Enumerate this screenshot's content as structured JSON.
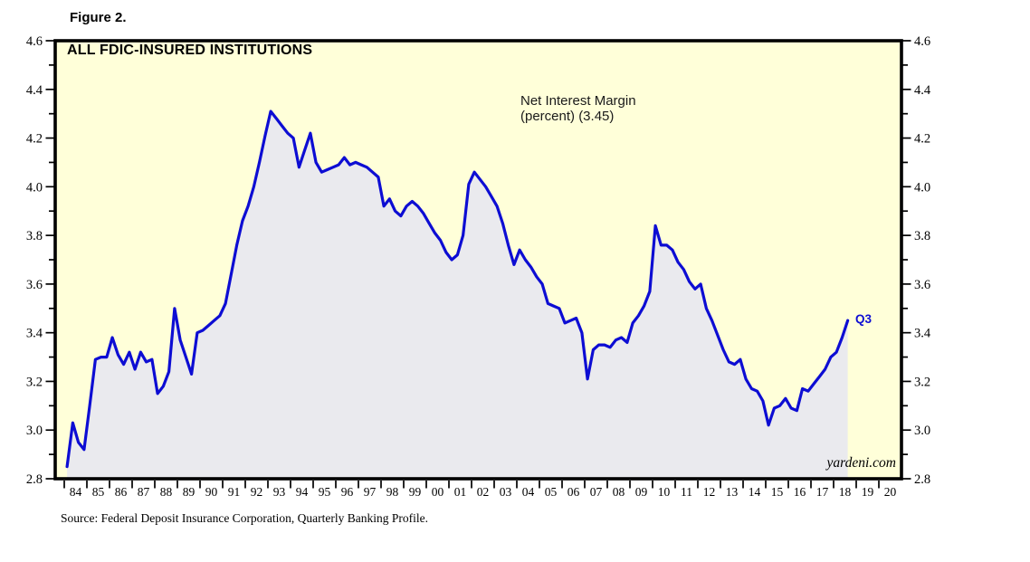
{
  "figure_label": "Figure 2.",
  "chart": {
    "title": "ALL FDIC-INSURED INSTITUTIONS",
    "annotation_line1": "Net Interest Margin",
    "annotation_line2": "(percent) (3.45)",
    "end_label": "Q3",
    "watermark": "yardeni.com",
    "source": "Source: Federal Deposit Insurance Corporation, Quarterly Banking Profile."
  },
  "colors": {
    "line": "#0d0dd3",
    "area_fill": "#eaeaee",
    "plot_background": "#ffffd9",
    "axis": "#000000",
    "end_label_color": "#0d0dd3",
    "annotation_color": "#1a1a1a"
  },
  "chart_data": {
    "type": "area",
    "title": "ALL FDIC-INSURED INSTITUTIONS",
    "series_name": "Net Interest Margin (percent)",
    "latest_label": "Q3",
    "latest_value": 3.45,
    "ylim": [
      2.8,
      4.6
    ],
    "y_major_step": 0.2,
    "y_minor_step": 0.1,
    "y_tick_labels": [
      "2.8",
      "3.0",
      "3.2",
      "3.4",
      "3.6",
      "3.8",
      "4.0",
      "4.2",
      "4.4",
      "4.6"
    ],
    "x_axis_start_year": 1984,
    "x_axis_end_year": 2021,
    "x_tick_labels": [
      "84",
      "85",
      "86",
      "87",
      "88",
      "89",
      "90",
      "91",
      "92",
      "93",
      "94",
      "95",
      "96",
      "97",
      "98",
      "99",
      "00",
      "01",
      "02",
      "03",
      "04",
      "05",
      "06",
      "07",
      "08",
      "09",
      "10",
      "11",
      "12",
      "13",
      "14",
      "15",
      "16",
      "17",
      "18",
      "19",
      "20"
    ],
    "data_start_year": 1984,
    "data_start_quarter": 1,
    "frequency": "quarterly",
    "grid": false,
    "legend": "none",
    "quarterly_values": [
      2.85,
      3.03,
      2.95,
      2.92,
      3.1,
      3.29,
      3.3,
      3.3,
      3.38,
      3.31,
      3.27,
      3.32,
      3.25,
      3.32,
      3.28,
      3.29,
      3.15,
      3.18,
      3.24,
      3.5,
      3.37,
      3.3,
      3.23,
      3.4,
      3.41,
      3.43,
      3.45,
      3.47,
      3.52,
      3.64,
      3.76,
      3.86,
      3.92,
      4.0,
      4.1,
      4.21,
      4.31,
      4.28,
      4.25,
      4.22,
      4.2,
      4.08,
      4.15,
      4.22,
      4.1,
      4.06,
      4.07,
      4.08,
      4.09,
      4.12,
      4.09,
      4.1,
      4.09,
      4.08,
      4.06,
      4.04,
      3.92,
      3.95,
      3.9,
      3.88,
      3.92,
      3.94,
      3.92,
      3.89,
      3.85,
      3.81,
      3.78,
      3.73,
      3.7,
      3.72,
      3.8,
      4.01,
      4.06,
      4.03,
      4.0,
      3.96,
      3.92,
      3.85,
      3.76,
      3.68,
      3.74,
      3.7,
      3.67,
      3.63,
      3.6,
      3.52,
      3.51,
      3.5,
      3.44,
      3.45,
      3.46,
      3.4,
      3.21,
      3.33,
      3.35,
      3.35,
      3.34,
      3.37,
      3.38,
      3.36,
      3.44,
      3.47,
      3.51,
      3.57,
      3.84,
      3.76,
      3.76,
      3.74,
      3.69,
      3.66,
      3.61,
      3.58,
      3.6,
      3.5,
      3.45,
      3.39,
      3.33,
      3.28,
      3.27,
      3.29,
      3.21,
      3.17,
      3.16,
      3.12,
      3.02,
      3.09,
      3.1,
      3.13,
      3.09,
      3.08,
      3.17,
      3.16,
      3.19,
      3.22,
      3.25,
      3.3,
      3.32,
      3.38,
      3.45
    ]
  }
}
